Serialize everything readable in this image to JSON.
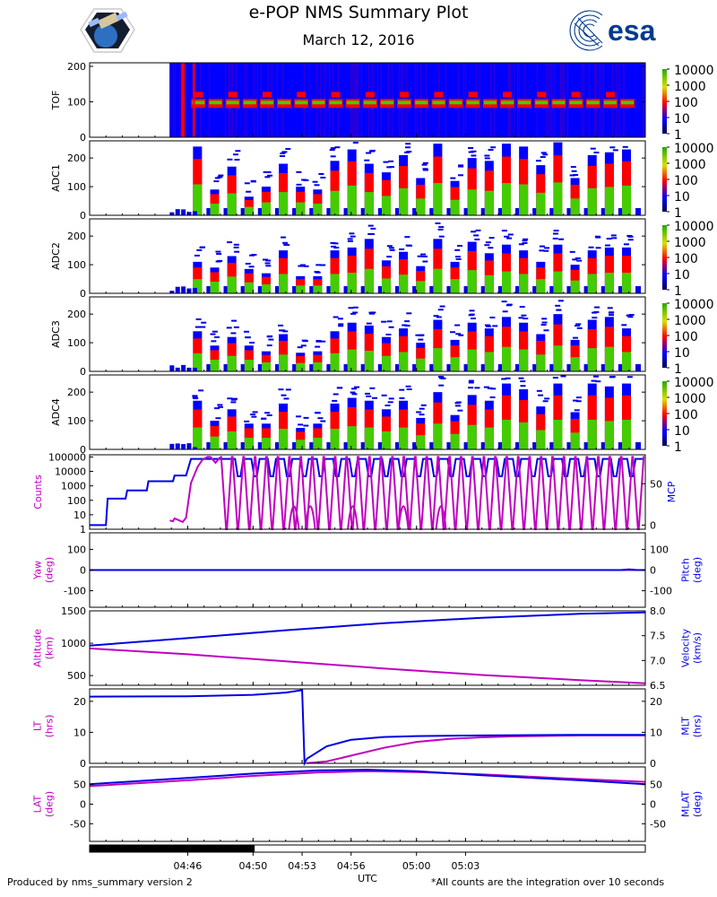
{
  "header": {
    "title": "e-POP NMS Summary Plot",
    "date": "March 12, 2016",
    "esa_wordmark": "esa"
  },
  "footer": {
    "left": "Produced by nms_summary version 2",
    "right": "*All counts are the integration over 10 seconds"
  },
  "colors": {
    "magenta": "#c000c0",
    "blue": "#0000e6",
    "spectro_bg": "#0000ff",
    "spectro_red": "#ff0000",
    "spectro_green": "#44cc00",
    "spectro_dark": "#00004a"
  },
  "chart_data": {
    "type": "multi-panel",
    "x_axis": {
      "label": "UTC",
      "range_min": [
        280,
        314
      ],
      "ticks": [
        {
          "t": 286,
          "label": "04:46"
        },
        {
          "t": 290,
          "label": "04:50"
        },
        {
          "t": 293,
          "label": "04:53"
        },
        {
          "t": 296,
          "label": "04:56"
        },
        {
          "t": 300,
          "label": "05:00"
        },
        {
          "t": 303,
          "label": "05:03"
        }
      ],
      "bar": {
        "from": 280,
        "to": 289
      }
    },
    "colorbar_ticks": [
      "10000",
      "1000",
      "100",
      "10",
      "1"
    ],
    "spectrograms": [
      {
        "ylabel": "TOF",
        "ylim": [
          0,
          210
        ],
        "yticks": [
          "0",
          "100",
          "200"
        ],
        "data_start": 284.9,
        "bands": [
          100,
          120,
          175
        ]
      },
      {
        "ylabel": "ADC1",
        "ylim": [
          0,
          260
        ],
        "yticks": [
          "0",
          "100",
          "200"
        ],
        "data_start": 284.9,
        "peaks": [
          240,
          90,
          170,
          65,
          100,
          180,
          100,
          90,
          190,
          230,
          180,
          150,
          210,
          130,
          250,
          120,
          200,
          190,
          250,
          240,
          175,
          255,
          130,
          210,
          220,
          230
        ]
      },
      {
        "ylabel": "ADC2",
        "ylim": [
          0,
          260
        ],
        "yticks": [
          "0",
          "100",
          "200"
        ],
        "data_start": 284.9,
        "peaks": [
          110,
          90,
          130,
          85,
          70,
          150,
          60,
          60,
          150,
          160,
          190,
          115,
          145,
          95,
          190,
          110,
          180,
          140,
          170,
          150,
          110,
          170,
          100,
          150,
          160,
          160
        ]
      },
      {
        "ylabel": "ADC3",
        "ylim": [
          0,
          260
        ],
        "yticks": [
          "0",
          "100",
          "200"
        ],
        "data_start": 284.9,
        "peaks": [
          140,
          90,
          120,
          90,
          70,
          130,
          65,
          70,
          140,
          170,
          160,
          120,
          150,
          100,
          180,
          110,
          170,
          150,
          190,
          170,
          130,
          200,
          110,
          180,
          190,
          150
        ]
      },
      {
        "ylabel": "ADC4",
        "ylim": [
          0,
          260
        ],
        "yticks": [
          "0",
          "100",
          "200"
        ],
        "data_start": 284.9,
        "peaks": [
          170,
          100,
          140,
          90,
          90,
          160,
          75,
          90,
          160,
          180,
          170,
          140,
          170,
          110,
          200,
          120,
          190,
          170,
          230,
          210,
          150,
          230,
          130,
          230,
          220,
          230
        ]
      }
    ],
    "line_panels": [
      {
        "left_label": [
          "Counts"
        ],
        "right_label": [
          "MCP"
        ],
        "left_ticks": [
          "1",
          "10",
          "100",
          "1000",
          "10000",
          "100000"
        ],
        "right_ticks": [
          "0",
          "50"
        ],
        "series": [
          {
            "name": "MCP",
            "color": "blue",
            "axis": "right",
            "ylim": [
              -5,
              85
            ],
            "x": [
              280,
              281,
              281.1,
              282.2,
              282.3,
              283.5,
              283.6,
              285.1,
              285.2,
              285.9,
              286.2,
              288.4
            ],
            "y": [
              0,
              0,
              32,
              32,
              42,
              42,
              53,
              53,
              60,
              60,
              80,
              80
            ],
            "oscillation": {
              "from": 288.4,
              "to": 314,
              "period": 1.0,
              "top": 80,
              "bottom": 52
            }
          },
          {
            "name": "Counts",
            "color": "magenta",
            "axis": "left",
            "ylog": [
              0,
              5.15
            ],
            "x": [
              284.9,
              285.1,
              285.2,
              285.5,
              285.7,
              285.9,
              286.2,
              286.6,
              286.9,
              287.2,
              287.4,
              287.7,
              288.0
            ],
            "y": [
              0.6,
              0.55,
              0.75,
              0.6,
              0.5,
              0.8,
              3.2,
              4.3,
              4.8,
              5.0,
              5.0,
              4.6,
              5.0
            ],
            "comb_from": 288.0,
            "comb_period": 0.7,
            "comb_bottom": 0,
            "comb_top": 5.0
          }
        ]
      },
      {
        "left_label": [
          "Yaw",
          "(deg)"
        ],
        "right_label": [
          "Pitch",
          "(deg)"
        ],
        "left_ticks": [
          "-100",
          "0",
          "100"
        ],
        "right_ticks": [
          "-100",
          "0",
          "100"
        ],
        "series": [
          {
            "name": "Yaw",
            "color": "magenta",
            "ylim": [
              -180,
              180
            ],
            "x": [
              280,
              314
            ],
            "y": [
              0,
              0
            ]
          },
          {
            "name": "Pitch",
            "color": "blue",
            "ylim": [
              -180,
              180
            ],
            "x": [
              280,
              312.5,
              313,
              313.5,
              314
            ],
            "y": [
              0,
              0,
              3,
              0,
              0
            ]
          }
        ]
      },
      {
        "left_label": [
          "Altitude",
          "(km)"
        ],
        "right_label": [
          "Velocity",
          "(km/s)"
        ],
        "left_ticks": [
          "500",
          "1000",
          "1500"
        ],
        "right_ticks": [
          "6.5",
          "7.0",
          "7.5",
          "8.0"
        ],
        "series": [
          {
            "name": "Altitude",
            "color": "magenta",
            "ylim": [
              350,
              1500
            ],
            "x": [
              280,
              286,
              292,
              298,
              304,
              310,
              314
            ],
            "y": [
              920,
              830,
              720,
              610,
              510,
              430,
              380
            ]
          },
          {
            "name": "Velocity",
            "color": "blue",
            "ylim": [
              6.5,
              8.0
            ],
            "x": [
              280,
              286,
              292,
              298,
              304,
              310,
              314
            ],
            "y": [
              7.3,
              7.45,
              7.61,
              7.75,
              7.86,
              7.94,
              7.97
            ]
          }
        ]
      },
      {
        "left_label": [
          "LT",
          "(hrs)"
        ],
        "right_label": [
          "MLT",
          "(hrs)"
        ],
        "left_ticks": [
          "0",
          "10",
          "20"
        ],
        "right_ticks": [
          "0",
          "10",
          "20"
        ],
        "series": [
          {
            "name": "LT",
            "color": "magenta",
            "ylim": [
              0,
              24
            ],
            "x": [
              293.3,
              294.5,
              296,
              298,
              300,
              302,
              304,
              306,
              310,
              314
            ],
            "y": [
              0.1,
              0.6,
              2.5,
              5,
              6.9,
              7.9,
              8.4,
              8.7,
              9.0,
              9.0
            ]
          },
          {
            "name": "MLT",
            "color": "blue",
            "ylim": [
              0,
              24
            ],
            "x": [
              280,
              286,
              290,
              292,
              293.0,
              293.15,
              293.3,
              294.5,
              296,
              298,
              300,
              304,
              310,
              314
            ],
            "y": [
              21.5,
              21.6,
              22.1,
              22.8,
              23.6,
              0.1,
              1.5,
              5.5,
              7.6,
              8.5,
              8.8,
              9.0,
              9.2,
              9.2
            ]
          }
        ]
      },
      {
        "left_label": [
          "LAT",
          "(deg)"
        ],
        "right_label": [
          "MLAT",
          "(deg)"
        ],
        "left_ticks": [
          "-50",
          "0",
          "50"
        ],
        "right_ticks": [
          "-50",
          "0",
          "50"
        ],
        "series": [
          {
            "name": "LAT",
            "color": "magenta",
            "ylim": [
              -95,
              95
            ],
            "x": [
              280,
              286,
              290,
              294,
              297,
              300,
              304,
              310,
              314
            ],
            "y": [
              46,
              61,
              72,
              81,
              84,
              82,
              76,
              64,
              57
            ]
          },
          {
            "name": "MLAT",
            "color": "blue",
            "ylim": [
              -95,
              95
            ],
            "x": [
              280,
              286,
              290,
              294,
              297,
              300,
              304,
              310,
              314
            ],
            "y": [
              51,
              67,
              78,
              86,
              88,
              84,
              74,
              61,
              51
            ]
          }
        ]
      }
    ]
  }
}
